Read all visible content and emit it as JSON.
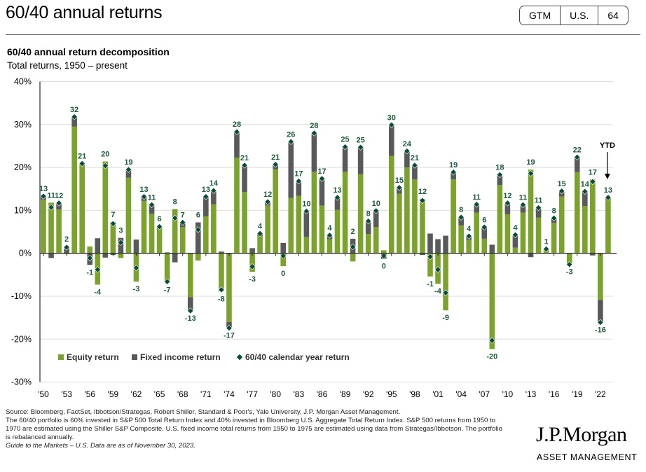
{
  "header": {
    "title": "60/40 annual returns",
    "badges": [
      "GTM",
      "U.S.",
      "64"
    ]
  },
  "subtitle": "60/40 annual return decomposition",
  "subtitle2": "Total returns, 1950 – present",
  "colors": {
    "equity": "#7aa22c",
    "fixed": "#58595b",
    "total": "#0b4d34",
    "label": "#1d5a3a"
  },
  "chart_data": {
    "type": "bar",
    "stacked": true,
    "title": "60/40 annual return decomposition",
    "ylim": [
      -30,
      40
    ],
    "yticks": [
      "40%",
      "30%",
      "20%",
      "10%",
      "0%",
      "-10%",
      "-20%",
      "-30%"
    ],
    "xticks": [
      "'50",
      "'53",
      "'56",
      "'59",
      "'62",
      "'65",
      "'68",
      "'71",
      "'74",
      "'77",
      "'80",
      "'83",
      "'86",
      "'89",
      "'92",
      "'95",
      "'98",
      "'01",
      "'04",
      "'07",
      "'10",
      "'13",
      "'16",
      "'19",
      "'22"
    ],
    "annotation": "YTD",
    "legend_placement": "bottom-left",
    "grid": true,
    "series_names": [
      "Equity return",
      "Fixed income return",
      "60/40 calendar year return"
    ],
    "years": [
      1950,
      1951,
      1952,
      1953,
      1954,
      1955,
      1956,
      1957,
      1958,
      1959,
      1960,
      1961,
      1962,
      1963,
      1964,
      1965,
      1966,
      1967,
      1968,
      1969,
      1970,
      1971,
      1972,
      1973,
      1974,
      1975,
      1976,
      1977,
      1978,
      1979,
      1980,
      1981,
      1982,
      1983,
      1984,
      1985,
      1986,
      1987,
      1988,
      1989,
      1990,
      1991,
      1992,
      1993,
      1994,
      1995,
      1996,
      1997,
      1998,
      1999,
      2000,
      2001,
      2002,
      2003,
      2004,
      2005,
      2006,
      2007,
      2008,
      2009,
      2010,
      2011,
      2012,
      2013,
      2014,
      2015,
      2016,
      2017,
      2018,
      2019,
      2020,
      2021,
      2022,
      2023
    ],
    "equity": [
      12.5,
      11.8,
      10.2,
      -0.2,
      29.5,
      20.8,
      1.6,
      -7.3,
      21.4,
      7.3,
      -1.1,
      17.6,
      -6.6,
      12.2,
      9.2,
      6.3,
      -6.8,
      10.3,
      6.1,
      -10.2,
      -1.7,
      8.6,
      11.4,
      -8.9,
      -16.0,
      22.3,
      14.3,
      -4.3,
      4.0,
      11.1,
      19.6,
      -3.0,
      12.9,
      13.4,
      3.8,
      19.0,
      11.1,
      3.3,
      10.1,
      19.0,
      -1.9,
      18.4,
      4.5,
      6.1,
      0.7,
      22.7,
      13.9,
      20.0,
      17.2,
      12.7,
      -5.4,
      -7.1,
      -13.3,
      17.2,
      6.5,
      3.1,
      9.5,
      3.4,
      -22.3,
      15.9,
      9.1,
      1.3,
      9.5,
      19.5,
      8.3,
      0.8,
      7.1,
      13.2,
      -2.6,
      18.9,
      11.0,
      17.2,
      -10.9,
      12.6
    ],
    "fixed_income": [
      0.8,
      -1.1,
      1.5,
      1.6,
      2.3,
      0.1,
      -2.7,
      3.5,
      -1.0,
      -0.4,
      3.6,
      1.9,
      3.2,
      1.0,
      2.1,
      -0.1,
      0.2,
      -2.1,
      1.1,
      -3.2,
      7.2,
      4.6,
      3.2,
      0.4,
      -1.4,
      6.0,
      6.2,
      1.2,
      0.6,
      0.9,
      1.1,
      2.4,
      13.1,
      3.4,
      6.0,
      9.0,
      6.3,
      0.9,
      2.9,
      5.8,
      3.4,
      6.3,
      3.0,
      3.8,
      -1.3,
      7.2,
      1.4,
      3.8,
      3.3,
      -0.4,
      4.6,
      3.3,
      4.1,
      1.7,
      1.9,
      0.9,
      1.9,
      2.7,
      2.0,
      2.4,
      2.6,
      3.0,
      1.8,
      -0.9,
      2.3,
      0.2,
      1.1,
      1.3,
      0.0,
      3.5,
      3.4,
      -0.5,
      -5.2,
      0.4
    ],
    "total_labels": [
      13,
      11,
      12,
      2,
      32,
      21,
      -1,
      -4,
      20,
      7,
      3,
      19,
      -3,
      13,
      11,
      6,
      -7,
      8,
      7,
      -13,
      6,
      13,
      14,
      -8,
      -17,
      28,
      21,
      -3,
      4,
      12,
      21,
      0,
      26,
      17,
      10,
      28,
      17,
      4,
      13,
      25,
      2,
      25,
      8,
      10,
      0,
      30,
      15,
      24,
      21,
      12,
      -1,
      -4,
      -9,
      19,
      8,
      4,
      11,
      6,
      -20,
      18,
      12,
      4,
      11,
      19,
      11,
      1,
      8,
      15,
      -3,
      22,
      14,
      17,
      -16,
      13
    ]
  },
  "footer": {
    "source": "Source: Bloomberg, FactSet, Ibbotson/Strategas, Robert Shiller, Standard & Poor's, Yale University, J.P. Morgan Asset Management.",
    "note": "The 60/40 portfolio is 60% invested in S&P 500 Total Return Index and 40% invested in Bloomberg U.S. Aggregate Total Return Index. S&P 500 returns from 1950 to 1970 are estimated using the Shiller S&P Composite. U.S. fixed income total returns from 1950 to 1975 are estimated using data from Strategas/Ibbotson. The portfolio is rebalanced annually.",
    "guide": "Guide to the Markets – U.S. Data are as of November 30, 2023."
  },
  "logo": {
    "name": "J.P.Morgan",
    "sub": "ASSET MANAGEMENT"
  }
}
